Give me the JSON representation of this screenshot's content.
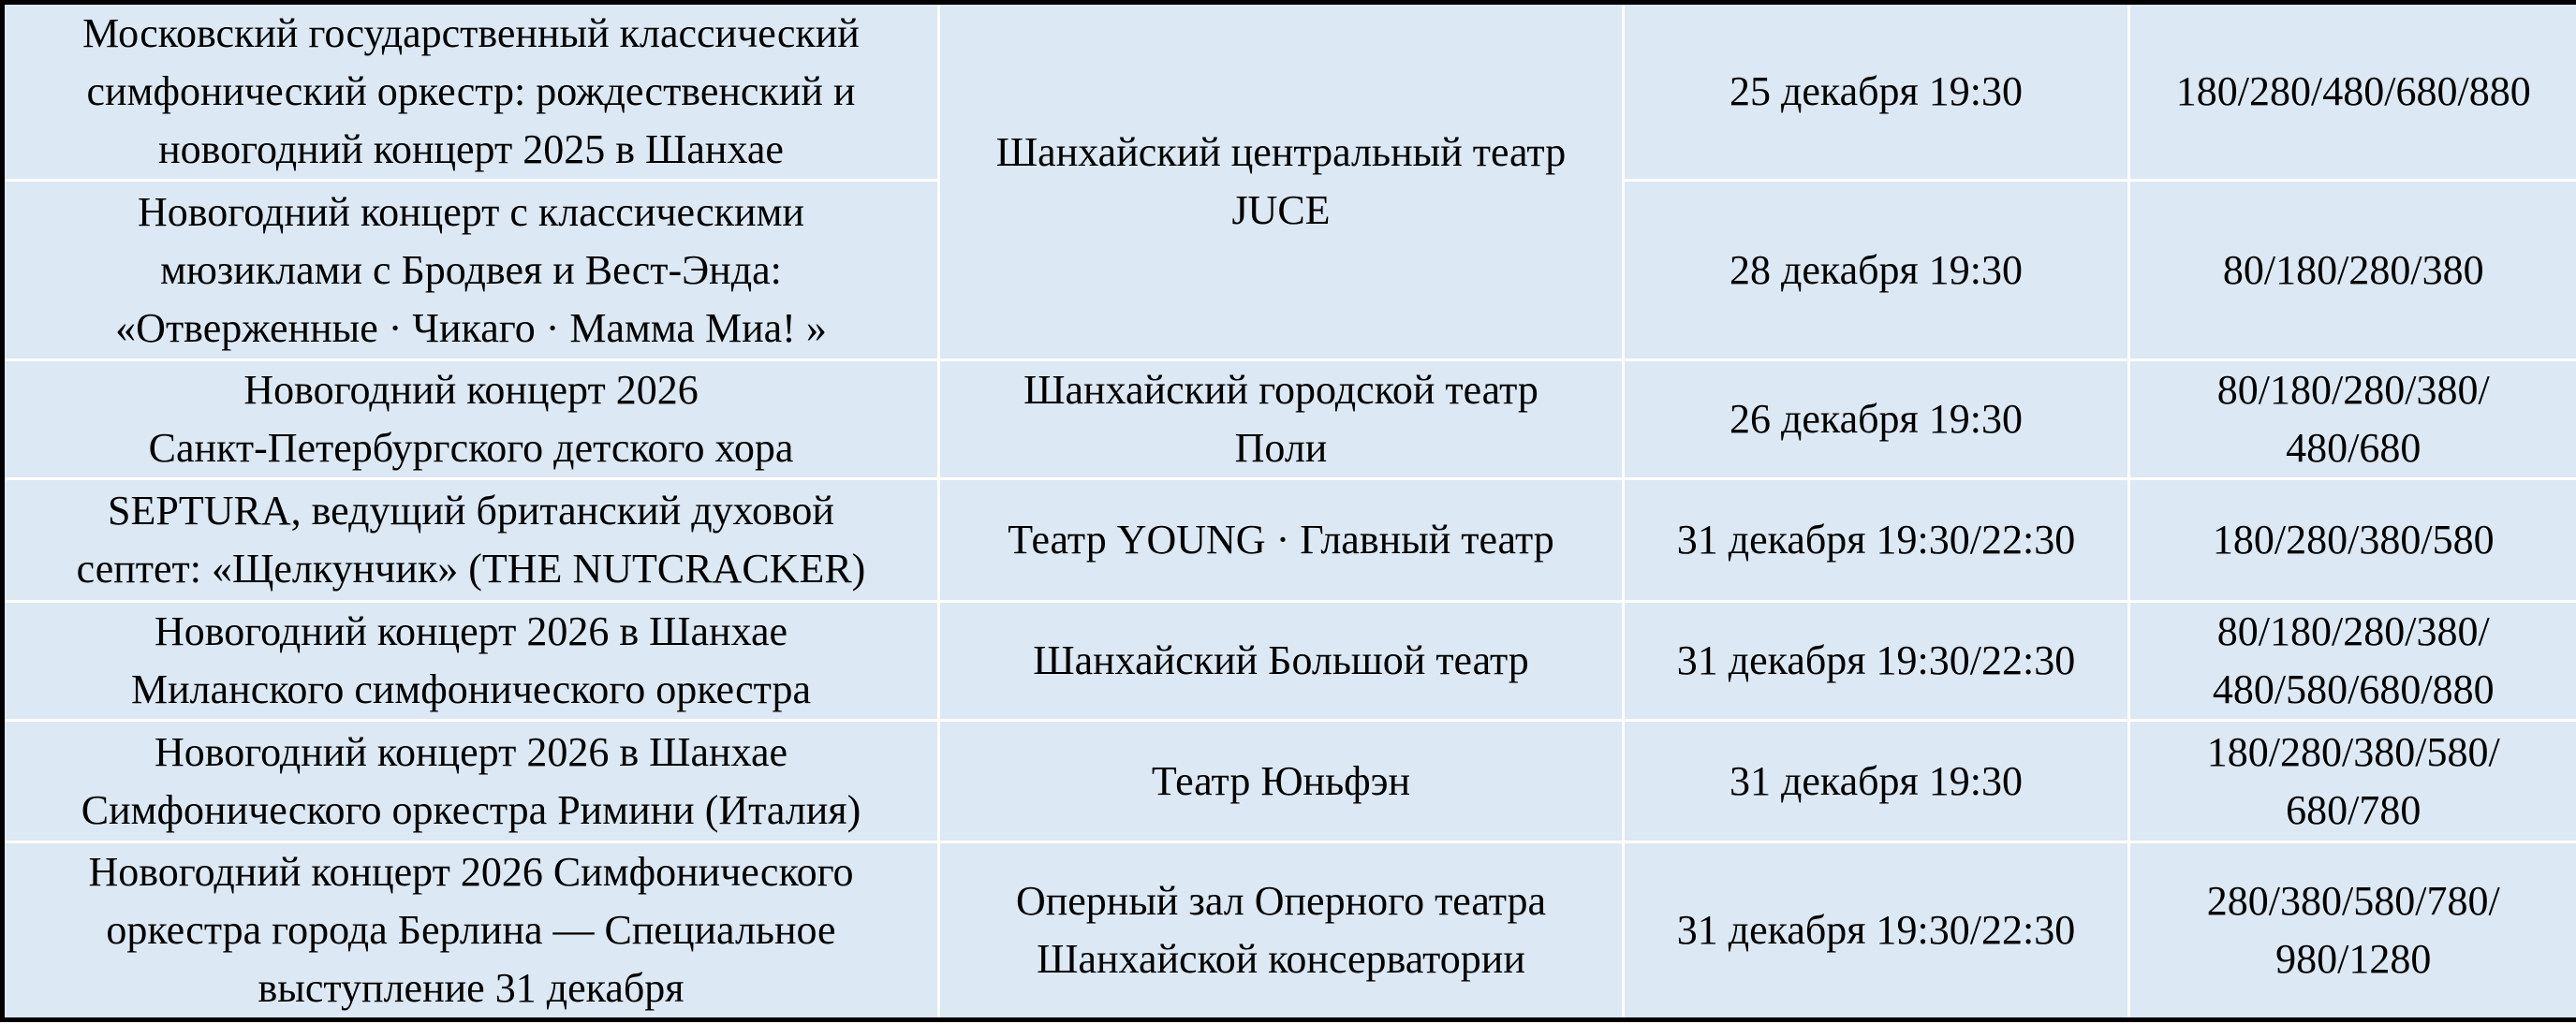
{
  "colors": {
    "cell_background": "#dce8f4",
    "grid_lines": "#ffffff",
    "outer_border": "#000000",
    "text": "#000000"
  },
  "table": {
    "rows": [
      {
        "event": "Московский государственный классический\nсимфонический оркестр: рождественский и\nновогодний концерт 2025 в Шанхае",
        "venue": "Шанхайский центральный театр\nJUCE",
        "datetime": "25 декабря 19:30",
        "prices": "180/280/480/680/880"
      },
      {
        "event": "Новогодний концерт с классическими\nмюзиклами с Бродвея и Вест-Энда:\n«Отверженные · Чикаго · Мамма Миа! »",
        "venue": "",
        "datetime": "28 декабря 19:30",
        "prices": "80/180/280/380"
      },
      {
        "event": "Новогодний концерт 2026\nСанкт-Петербургского детского хора",
        "venue": "Шанхайский городской театр\nПоли",
        "datetime": "26 декабря 19:30",
        "prices": "80/180/280/380/\n480/680"
      },
      {
        "event": "SEPTURA, ведущий британский духовой\nсептет: «Щелкунчик» (THE NUTCRACKER)",
        "venue": "Театр YOUNG · Главный театр",
        "datetime": "31 декабря 19:30/22:30",
        "prices": "180/280/380/580"
      },
      {
        "event": "Новогодний концерт 2026 в Шанхае\nМиланского симфонического оркестра",
        "venue": "Шанхайский Большой театр",
        "datetime": "31 декабря 19:30/22:30",
        "prices": "80/180/280/380/\n480/580/680/880"
      },
      {
        "event": "Новогодний концерт 2026 в Шанхае\nСимфонического оркестра Римини (Италия)",
        "venue": "Театр Юньфэн",
        "datetime": "31 декабря 19:30",
        "prices": "180/280/380/580/\n680/780"
      },
      {
        "event": "Новогодний концерт 2026 Симфонического\nоркестра города Берлина — Специальное\nвыступление 31 декабря",
        "venue": "Оперный зал Оперного театра\nШанхайской консерватории",
        "datetime": "31 декабря 19:30/22:30",
        "prices": "280/380/580/780/\n980/1280"
      }
    ]
  }
}
